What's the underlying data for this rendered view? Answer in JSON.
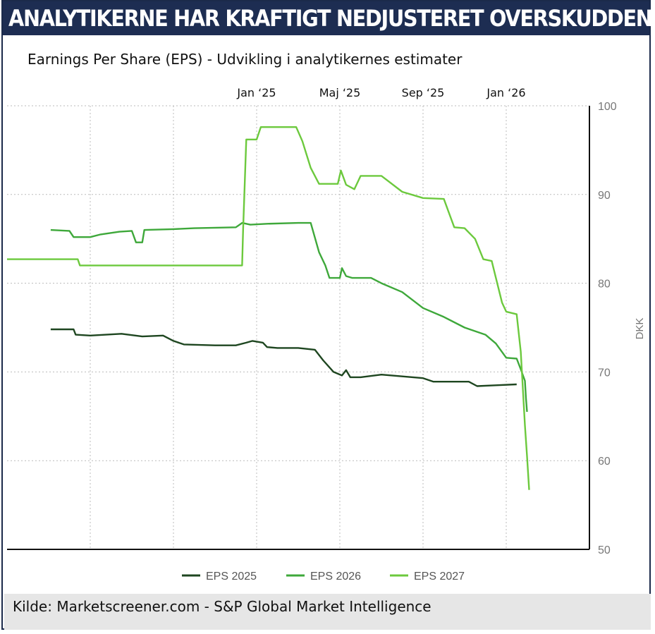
{
  "header": {
    "title": "ANALYTIKERNE HAR KRAFTIGT NEDJUSTERET OVERSKUDDENE"
  },
  "subtitle": "Earnings Per Share (EPS) - Udvikling i analytikernes estimater",
  "footer": {
    "source": "Kilde:  Marketscreener.com - S&P Global Market Intelligence"
  },
  "chart_data": {
    "type": "line",
    "title": "",
    "xlabel": "",
    "ylabel": "DKK",
    "ylim": [
      50,
      100
    ],
    "yticks": [
      "50",
      "60",
      "70",
      "80",
      "90",
      "100"
    ],
    "xticks": [
      {
        "label": "Jan ‘25",
        "x": 12.0
      },
      {
        "label": "Maj ‘25",
        "x": 16.0
      },
      {
        "label": "Sep ‘25",
        "x": 20.0
      },
      {
        "label": "Jan ‘26",
        "x": 24.0
      }
    ],
    "grid": true,
    "legend": "bottom",
    "colors": {
      "EPS 2025": "#1e4620",
      "EPS 2026": "#3ea83a",
      "EPS 2027": "#6cc93d",
      "axis": "#111111",
      "grid": "#bbbbbb"
    },
    "series": [
      {
        "name": "EPS 2025",
        "points": [
          [
            2.1,
            74.8
          ],
          [
            3.2,
            74.8
          ],
          [
            3.3,
            74.2
          ],
          [
            4.0,
            74.1
          ],
          [
            5.5,
            74.3
          ],
          [
            6.5,
            74.0
          ],
          [
            7.5,
            74.1
          ],
          [
            8.0,
            73.5
          ],
          [
            8.5,
            73.1
          ],
          [
            10.0,
            73.0
          ],
          [
            11.0,
            73.0
          ],
          [
            11.5,
            73.3
          ],
          [
            11.8,
            73.5
          ],
          [
            12.3,
            73.3
          ],
          [
            12.5,
            72.8
          ],
          [
            13.0,
            72.7
          ],
          [
            14.0,
            72.7
          ],
          [
            14.8,
            72.5
          ],
          [
            15.2,
            71.3
          ],
          [
            15.7,
            70.0
          ],
          [
            16.1,
            69.6
          ],
          [
            16.3,
            70.2
          ],
          [
            16.5,
            69.4
          ],
          [
            17.0,
            69.4
          ],
          [
            18.0,
            69.7
          ],
          [
            19.0,
            69.5
          ],
          [
            20.0,
            69.3
          ],
          [
            20.5,
            68.9
          ],
          [
            21.0,
            68.9
          ],
          [
            22.2,
            68.9
          ],
          [
            22.6,
            68.4
          ],
          [
            23.5,
            68.5
          ],
          [
            24.5,
            68.6
          ]
        ]
      },
      {
        "name": "EPS 2026",
        "points": [
          [
            2.1,
            86.0
          ],
          [
            3.0,
            85.9
          ],
          [
            3.2,
            85.2
          ],
          [
            4.0,
            85.2
          ],
          [
            4.5,
            85.5
          ],
          [
            5.4,
            85.8
          ],
          [
            6.0,
            85.9
          ],
          [
            6.2,
            84.6
          ],
          [
            6.5,
            84.6
          ],
          [
            6.6,
            86.0
          ],
          [
            8.0,
            86.1
          ],
          [
            9.0,
            86.2
          ],
          [
            11.0,
            86.3
          ],
          [
            11.3,
            86.8
          ],
          [
            11.7,
            86.6
          ],
          [
            12.5,
            86.7
          ],
          [
            14.0,
            86.8
          ],
          [
            14.6,
            86.8
          ],
          [
            15.0,
            83.5
          ],
          [
            15.3,
            82.0
          ],
          [
            15.5,
            80.6
          ],
          [
            16.0,
            80.6
          ],
          [
            16.1,
            81.7
          ],
          [
            16.3,
            80.8
          ],
          [
            16.6,
            80.6
          ],
          [
            17.5,
            80.6
          ],
          [
            18.0,
            80.0
          ],
          [
            19.0,
            79.0
          ],
          [
            20.0,
            77.2
          ],
          [
            21.0,
            76.2
          ],
          [
            22.0,
            75.0
          ],
          [
            23.0,
            74.2
          ],
          [
            23.5,
            73.2
          ],
          [
            24.0,
            71.6
          ],
          [
            24.5,
            71.5
          ],
          [
            24.7,
            70.3
          ],
          [
            24.9,
            69.0
          ],
          [
            24.95,
            67.0
          ],
          [
            25.0,
            65.5
          ]
        ]
      },
      {
        "name": "EPS 2027",
        "points": [
          [
            0.0,
            82.7
          ],
          [
            3.4,
            82.7
          ],
          [
            3.5,
            82.0
          ],
          [
            9.0,
            82.0
          ],
          [
            11.3,
            82.0
          ],
          [
            11.35,
            86.0
          ],
          [
            11.5,
            96.2
          ],
          [
            12.0,
            96.2
          ],
          [
            12.2,
            97.6
          ],
          [
            13.0,
            97.6
          ],
          [
            13.9,
            97.6
          ],
          [
            14.2,
            96.0
          ],
          [
            14.6,
            93.0
          ],
          [
            15.0,
            91.2
          ],
          [
            15.9,
            91.2
          ],
          [
            16.05,
            92.7
          ],
          [
            16.3,
            91.1
          ],
          [
            16.7,
            90.6
          ],
          [
            17.0,
            92.1
          ],
          [
            18.0,
            92.1
          ],
          [
            19.0,
            90.3
          ],
          [
            20.0,
            89.6
          ],
          [
            21.0,
            89.5
          ],
          [
            21.5,
            86.3
          ],
          [
            22.0,
            86.2
          ],
          [
            22.5,
            85.0
          ],
          [
            22.9,
            82.7
          ],
          [
            23.3,
            82.5
          ],
          [
            23.8,
            77.8
          ],
          [
            24.0,
            76.8
          ],
          [
            24.5,
            76.5
          ],
          [
            24.7,
            72.3
          ],
          [
            24.9,
            64.0
          ],
          [
            25.0,
            60.5
          ],
          [
            25.1,
            56.7
          ]
        ]
      }
    ]
  }
}
